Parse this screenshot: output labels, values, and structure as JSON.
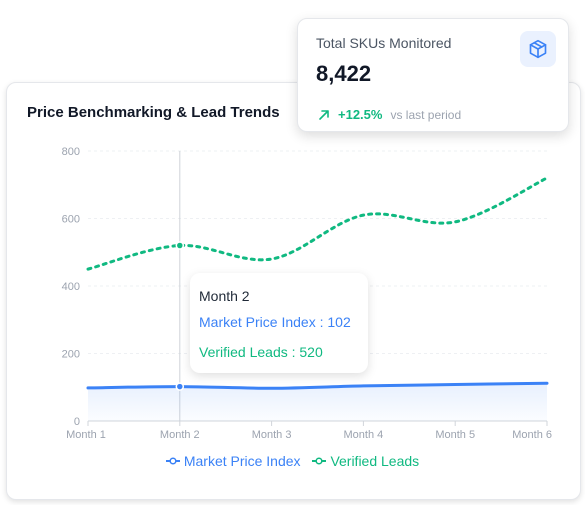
{
  "stat_card": {
    "label": "Total SKUs Monitored",
    "value": "8,422",
    "trend_value": "+12.5%",
    "trend_note": "vs last period",
    "icon": "box-icon",
    "trend_icon": "arrow-up-right-icon"
  },
  "chart_card": {
    "title": "Price Benchmarking & Lead Trends"
  },
  "tooltip": {
    "title": "Month 2",
    "rows": [
      "Market Price Index : 102",
      "Verified Leads : 520"
    ]
  },
  "legend": {
    "items": [
      "Market Price Index",
      "Verified Leads"
    ]
  },
  "colors": {
    "market_price_index": "#3b82f6",
    "verified_leads": "#10b981"
  },
  "chart_data": {
    "type": "line",
    "title": "Price Benchmarking & Lead Trends",
    "categories": [
      "Month 1",
      "Month 2",
      "Month 3",
      "Month 4",
      "Month 5",
      "Month 6"
    ],
    "yticks": [
      0,
      200,
      400,
      600,
      800
    ],
    "ylim": [
      0,
      800
    ],
    "grid": true,
    "legend_position": "bottom",
    "hover_category": "Month 2",
    "series": [
      {
        "name": "Market Price Index",
        "values": [
          98,
          102,
          97,
          104,
          108,
          112
        ],
        "style": "solid",
        "area": true
      },
      {
        "name": "Verified Leads",
        "values": [
          450,
          520,
          480,
          610,
          590,
          720
        ],
        "style": "dotted"
      }
    ]
  }
}
